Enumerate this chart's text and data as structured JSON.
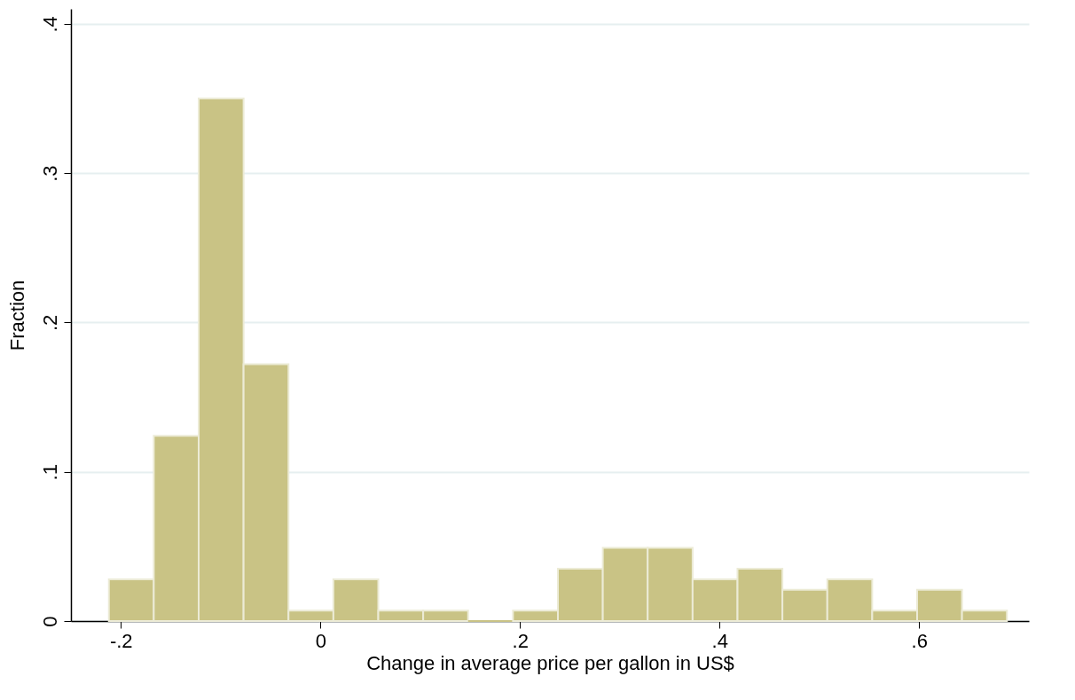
{
  "chart_data": {
    "type": "histogram",
    "xlabel": "Change in average price per gallon in US$",
    "ylabel": "Fraction",
    "bins": [
      -0.212,
      -0.167,
      -0.122,
      -0.077,
      -0.032,
      0.013,
      0.058,
      0.103,
      0.148,
      0.193,
      0.238,
      0.283,
      0.328,
      0.373,
      0.418,
      0.463,
      0.508,
      0.553,
      0.598,
      0.643,
      0.688
    ],
    "values": [
      0.028,
      0.124,
      0.35,
      0.172,
      0.007,
      0.028,
      0.007,
      0.007,
      0,
      0.007,
      0.035,
      0.049,
      0.049,
      0.028,
      0.035,
      0.021,
      0.028,
      0.007,
      0.021,
      0.007
    ],
    "color": "#c9c385",
    "xlim": [
      -0.25,
      0.71
    ],
    "ylim": [
      0,
      0.41
    ],
    "xticks": [
      {
        "value": -0.2,
        "label": "-.2"
      },
      0,
      {
        "value": 0.2,
        "label": ".2"
      },
      {
        "value": 0.4,
        "label": ".4"
      },
      {
        "value": 0.6,
        "label": ".6"
      }
    ],
    "yticks": [
      0,
      {
        "value": 0.1,
        "label": ".1"
      },
      {
        "value": 0.2,
        "label": ".2"
      },
      {
        "value": 0.3,
        "label": ".3"
      },
      {
        "value": 0.4,
        "label": ".4"
      }
    ],
    "grid": "y"
  }
}
